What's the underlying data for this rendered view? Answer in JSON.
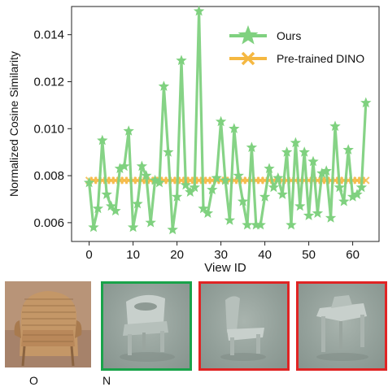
{
  "chart_data": {
    "type": "line",
    "xlabel": "View ID",
    "ylabel": "Normalized Cosine Similarity",
    "xlim": [
      -4,
      66
    ],
    "ylim": [
      0.0052,
      0.0152
    ],
    "xticks": [
      "0",
      "10",
      "20",
      "30",
      "40",
      "50",
      "60"
    ],
    "yticks": [
      "0.006",
      "0.008",
      "0.010",
      "0.012",
      "0.014"
    ],
    "legend_position": "top-right",
    "series": [
      {
        "name": "Ours",
        "color": "#7fd17f",
        "marker": "star",
        "x": [
          0,
          1,
          2,
          3,
          4,
          5,
          6,
          7,
          8,
          9,
          10,
          11,
          12,
          13,
          14,
          15,
          16,
          17,
          18,
          19,
          20,
          21,
          22,
          23,
          24,
          25,
          26,
          27,
          28,
          29,
          30,
          31,
          32,
          33,
          34,
          35,
          36,
          37,
          38,
          39,
          40,
          41,
          42,
          43,
          44,
          45,
          46,
          47,
          48,
          49,
          50,
          51,
          52,
          53,
          54,
          55,
          56,
          57,
          58,
          59,
          60,
          61,
          62,
          63
        ],
        "values": [
          0.0077,
          0.0058,
          0.0066,
          0.0095,
          0.0072,
          0.0067,
          0.0065,
          0.0083,
          0.0084,
          0.0099,
          0.0058,
          0.0068,
          0.0084,
          0.008,
          0.006,
          0.0078,
          0.0077,
          0.0118,
          0.009,
          0.0057,
          0.0071,
          0.0129,
          0.0076,
          0.0073,
          0.0075,
          0.015,
          0.0066,
          0.0064,
          0.0074,
          0.0079,
          0.0103,
          0.0078,
          0.0061,
          0.01,
          0.008,
          0.0069,
          0.0059,
          0.0092,
          0.0059,
          0.0059,
          0.0071,
          0.0083,
          0.0075,
          0.0079,
          0.0072,
          0.009,
          0.0059,
          0.0094,
          0.0067,
          0.009,
          0.0063,
          0.0086,
          0.0064,
          0.0081,
          0.0082,
          0.0062,
          0.0101,
          0.0075,
          0.0069,
          0.0091,
          0.0071,
          0.0072,
          0.0075,
          0.0111
        ]
      },
      {
        "name": "Pre-trained DINO",
        "color": "#f5b841",
        "marker": "x",
        "x": [
          0,
          1,
          2,
          3,
          4,
          5,
          6,
          7,
          8,
          9,
          10,
          11,
          12,
          13,
          14,
          15,
          16,
          17,
          18,
          19,
          20,
          21,
          22,
          23,
          24,
          25,
          26,
          27,
          28,
          29,
          30,
          31,
          32,
          33,
          34,
          35,
          36,
          37,
          38,
          39,
          40,
          41,
          42,
          43,
          44,
          45,
          46,
          47,
          48,
          49,
          50,
          51,
          52,
          53,
          54,
          55,
          56,
          57,
          58,
          59,
          60,
          61,
          62,
          63
        ],
        "values": [
          0.0078,
          0.0078,
          0.0078,
          0.0078,
          0.0078,
          0.0078,
          0.0078,
          0.0078,
          0.0078,
          0.0078,
          0.0078,
          0.0078,
          0.0078,
          0.0078,
          0.0078,
          0.0078,
          0.0078,
          0.0078,
          0.0078,
          0.0078,
          0.0078,
          0.0078,
          0.0078,
          0.0078,
          0.0078,
          0.0078,
          0.0078,
          0.0078,
          0.0078,
          0.0078,
          0.0078,
          0.0078,
          0.0078,
          0.0078,
          0.0078,
          0.0078,
          0.0078,
          0.0078,
          0.0078,
          0.0078,
          0.0078,
          0.0078,
          0.0078,
          0.0078,
          0.0078,
          0.0078,
          0.0078,
          0.0078,
          0.0078,
          0.0078,
          0.0078,
          0.0078,
          0.0078,
          0.0078,
          0.0078,
          0.0078,
          0.0078,
          0.0078,
          0.0078,
          0.0078,
          0.0078,
          0.0078,
          0.0078,
          0.0078
        ]
      }
    ]
  },
  "thumbnails": {
    "photo_caption": "O",
    "render_caption": "N",
    "frame_colors": [
      "#19a34a",
      "#e02424",
      "#e02424"
    ]
  }
}
